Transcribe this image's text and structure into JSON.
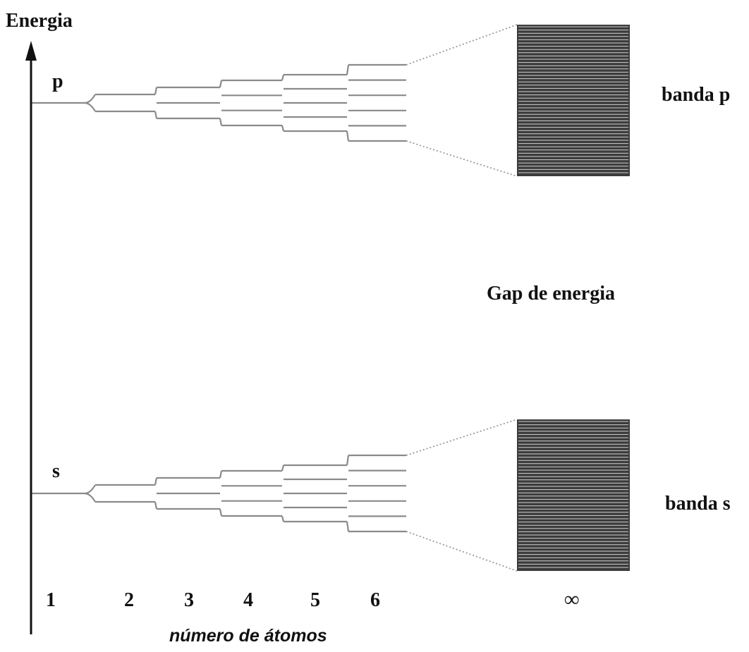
{
  "axis": {
    "y_label": "Energia",
    "x_label": "número de átomos"
  },
  "levels": {
    "upper": "p",
    "lower": "s"
  },
  "bands": {
    "upper": "banda p",
    "lower": "banda s"
  },
  "gap_label": "Gap de energia",
  "atom_counts": [
    "1",
    "2",
    "3",
    "4",
    "5",
    "6",
    "∞"
  ],
  "colors": {
    "axis": "#111111",
    "level_lines": "#8a8a8a",
    "band": "#3c3c3c",
    "band_lines": "#d0d0d0"
  }
}
